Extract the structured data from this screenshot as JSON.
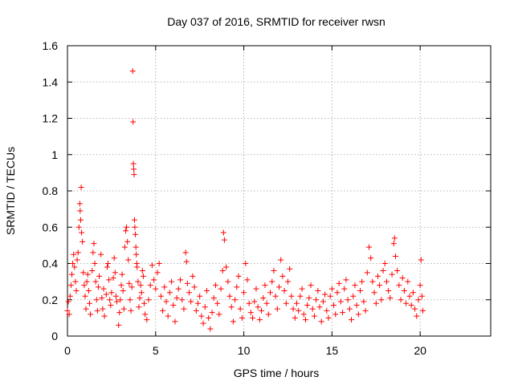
{
  "chart_data": {
    "type": "scatter",
    "title": "Day 037 of 2016, SRMTID for receiver rwsn",
    "xlabel": "GPS time / hours",
    "ylabel": "SRMTID / TECUs",
    "xlim": [
      0,
      24
    ],
    "ylim": [
      0,
      1.6
    ],
    "xticks": [
      0,
      5,
      10,
      15,
      20
    ],
    "yticks": [
      0,
      0.2,
      0.4,
      0.6,
      0.8,
      1,
      1.2,
      1.4,
      1.6
    ],
    "xtick_labels": [
      "0",
      "5",
      "10",
      "15",
      "20"
    ],
    "ytick_labels": [
      "0",
      "0.2",
      "0.4",
      "0.6",
      "0.8",
      "1",
      "1.2",
      "1.4",
      "1.6"
    ],
    "grid": true,
    "marker": "plus",
    "color": "#ff0000",
    "series": [
      {
        "name": "rwsn",
        "points": [
          [
            0.0,
            0.14
          ],
          [
            0.05,
            0.19
          ],
          [
            0.1,
            0.12
          ],
          [
            0.15,
            0.22
          ],
          [
            0.2,
            0.28
          ],
          [
            0.25,
            0.34
          ],
          [
            0.3,
            0.4
          ],
          [
            0.35,
            0.45
          ],
          [
            0.4,
            0.38
          ],
          [
            0.45,
            0.3
          ],
          [
            0.5,
            0.25
          ],
          [
            0.55,
            0.42
          ],
          [
            0.6,
            0.46
          ],
          [
            0.65,
            0.6
          ],
          [
            0.7,
            0.73
          ],
          [
            0.72,
            0.69
          ],
          [
            0.75,
            0.64
          ],
          [
            0.78,
            0.82
          ],
          [
            0.8,
            0.57
          ],
          [
            0.85,
            0.52
          ],
          [
            0.9,
            0.35
          ],
          [
            0.95,
            0.28
          ],
          [
            1.0,
            0.22
          ],
          [
            1.05,
            0.15
          ],
          [
            1.1,
            0.3
          ],
          [
            1.15,
            0.34
          ],
          [
            1.2,
            0.25
          ],
          [
            1.25,
            0.18
          ],
          [
            1.3,
            0.12
          ],
          [
            1.4,
            0.36
          ],
          [
            1.45,
            0.46
          ],
          [
            1.5,
            0.51
          ],
          [
            1.55,
            0.4
          ],
          [
            1.6,
            0.3
          ],
          [
            1.65,
            0.2
          ],
          [
            1.7,
            0.14
          ],
          [
            1.75,
            0.27
          ],
          [
            1.8,
            0.33
          ],
          [
            1.9,
            0.45
          ],
          [
            1.95,
            0.21
          ],
          [
            2.0,
            0.15
          ],
          [
            2.05,
            0.26
          ],
          [
            2.1,
            0.11
          ],
          [
            2.2,
            0.23
          ],
          [
            2.25,
            0.38
          ],
          [
            2.3,
            0.4
          ],
          [
            2.35,
            0.31
          ],
          [
            2.4,
            0.2
          ],
          [
            2.45,
            0.17
          ],
          [
            2.5,
            0.24
          ],
          [
            2.6,
            0.32
          ],
          [
            2.65,
            0.43
          ],
          [
            2.7,
            0.35
          ],
          [
            2.75,
            0.22
          ],
          [
            2.8,
            0.19
          ],
          [
            2.9,
            0.06
          ],
          [
            2.95,
            0.13
          ],
          [
            3.0,
            0.2
          ],
          [
            3.05,
            0.28
          ],
          [
            3.1,
            0.34
          ],
          [
            3.15,
            0.25
          ],
          [
            3.2,
            0.15
          ],
          [
            3.25,
            0.49
          ],
          [
            3.3,
            0.58
          ],
          [
            3.35,
            0.6
          ],
          [
            3.4,
            0.52
          ],
          [
            3.45,
            0.42
          ],
          [
            3.5,
            0.29
          ],
          [
            3.55,
            0.2
          ],
          [
            3.6,
            0.14
          ],
          [
            3.65,
            0.27
          ],
          [
            3.7,
            1.46
          ],
          [
            3.72,
            1.18
          ],
          [
            3.74,
            0.95
          ],
          [
            3.76,
            0.92
          ],
          [
            3.78,
            0.89
          ],
          [
            3.8,
            0.64
          ],
          [
            3.82,
            0.6
          ],
          [
            3.85,
            0.56
          ],
          [
            3.88,
            0.49
          ],
          [
            3.9,
            0.45
          ],
          [
            3.93,
            0.4
          ],
          [
            3.95,
            0.38
          ],
          [
            4.0,
            0.3
          ],
          [
            4.05,
            0.16
          ],
          [
            4.1,
            0.21
          ],
          [
            4.15,
            0.28
          ],
          [
            4.2,
            0.24
          ],
          [
            4.25,
            0.36
          ],
          [
            4.3,
            0.33
          ],
          [
            4.35,
            0.18
          ],
          [
            4.4,
            0.12
          ],
          [
            4.5,
            0.09
          ],
          [
            4.6,
            0.2
          ],
          [
            4.7,
            0.28
          ],
          [
            4.8,
            0.39
          ],
          [
            4.9,
            0.31
          ],
          [
            5.0,
            0.26
          ],
          [
            5.1,
            0.35
          ],
          [
            5.2,
            0.4
          ],
          [
            5.3,
            0.22
          ],
          [
            5.4,
            0.14
          ],
          [
            5.5,
            0.27
          ],
          [
            5.6,
            0.19
          ],
          [
            5.7,
            0.11
          ],
          [
            5.8,
            0.24
          ],
          [
            5.9,
            0.3
          ],
          [
            6.0,
            0.17
          ],
          [
            6.1,
            0.08
          ],
          [
            6.2,
            0.21
          ],
          [
            6.3,
            0.26
          ],
          [
            6.4,
            0.31
          ],
          [
            6.5,
            0.2
          ],
          [
            6.6,
            0.15
          ],
          [
            6.7,
            0.46
          ],
          [
            6.75,
            0.41
          ],
          [
            6.8,
            0.29
          ],
          [
            6.9,
            0.24
          ],
          [
            7.0,
            0.19
          ],
          [
            7.1,
            0.33
          ],
          [
            7.2,
            0.27
          ],
          [
            7.3,
            0.14
          ],
          [
            7.4,
            0.18
          ],
          [
            7.5,
            0.22
          ],
          [
            7.6,
            0.11
          ],
          [
            7.7,
            0.07
          ],
          [
            7.8,
            0.16
          ],
          [
            7.9,
            0.25
          ],
          [
            8.0,
            0.1
          ],
          [
            8.1,
            0.04
          ],
          [
            8.2,
            0.13
          ],
          [
            8.3,
            0.21
          ],
          [
            8.4,
            0.28
          ],
          [
            8.5,
            0.18
          ],
          [
            8.6,
            0.12
          ],
          [
            8.7,
            0.26
          ],
          [
            8.8,
            0.36
          ],
          [
            8.85,
            0.57
          ],
          [
            8.9,
            0.53
          ],
          [
            9.0,
            0.38
          ],
          [
            9.1,
            0.3
          ],
          [
            9.2,
            0.22
          ],
          [
            9.3,
            0.16
          ],
          [
            9.4,
            0.08
          ],
          [
            9.5,
            0.2
          ],
          [
            9.6,
            0.27
          ],
          [
            9.7,
            0.33
          ],
          [
            9.8,
            0.15
          ],
          [
            9.9,
            0.1
          ],
          [
            10.0,
            0.24
          ],
          [
            10.1,
            0.4
          ],
          [
            10.2,
            0.31
          ],
          [
            10.3,
            0.18
          ],
          [
            10.4,
            0.13
          ],
          [
            10.5,
            0.1
          ],
          [
            10.6,
            0.19
          ],
          [
            10.7,
            0.26
          ],
          [
            10.8,
            0.16
          ],
          [
            10.9,
            0.09
          ],
          [
            11.0,
            0.14
          ],
          [
            11.1,
            0.21
          ],
          [
            11.2,
            0.28
          ],
          [
            11.3,
            0.18
          ],
          [
            11.4,
            0.12
          ],
          [
            11.5,
            0.24
          ],
          [
            11.6,
            0.3
          ],
          [
            11.7,
            0.36
          ],
          [
            11.8,
            0.22
          ],
          [
            11.9,
            0.15
          ],
          [
            12.0,
            0.27
          ],
          [
            12.1,
            0.42
          ],
          [
            12.2,
            0.33
          ],
          [
            12.3,
            0.25
          ],
          [
            12.4,
            0.18
          ],
          [
            12.5,
            0.3
          ],
          [
            12.6,
            0.37
          ],
          [
            12.7,
            0.22
          ],
          [
            12.8,
            0.15
          ],
          [
            12.9,
            0.1
          ],
          [
            13.0,
            0.18
          ],
          [
            13.1,
            0.14
          ],
          [
            13.2,
            0.22
          ],
          [
            13.3,
            0.26
          ],
          [
            13.4,
            0.12
          ],
          [
            13.5,
            0.09
          ],
          [
            13.6,
            0.17
          ],
          [
            13.7,
            0.21
          ],
          [
            13.8,
            0.28
          ],
          [
            13.9,
            0.15
          ],
          [
            14.0,
            0.11
          ],
          [
            14.1,
            0.2
          ],
          [
            14.2,
            0.25
          ],
          [
            14.3,
            0.16
          ],
          [
            14.4,
            0.08
          ],
          [
            14.5,
            0.19
          ],
          [
            14.6,
            0.23
          ],
          [
            14.7,
            0.14
          ],
          [
            14.8,
            0.1
          ],
          [
            14.9,
            0.22
          ],
          [
            15.0,
            0.26
          ],
          [
            15.1,
            0.17
          ],
          [
            15.2,
            0.12
          ],
          [
            15.3,
            0.24
          ],
          [
            15.4,
            0.29
          ],
          [
            15.5,
            0.19
          ],
          [
            15.6,
            0.13
          ],
          [
            15.7,
            0.26
          ],
          [
            15.8,
            0.31
          ],
          [
            15.9,
            0.2
          ],
          [
            16.0,
            0.15
          ],
          [
            16.1,
            0.09
          ],
          [
            16.2,
            0.22
          ],
          [
            16.3,
            0.28
          ],
          [
            16.4,
            0.17
          ],
          [
            16.5,
            0.12
          ],
          [
            16.6,
            0.25
          ],
          [
            16.7,
            0.3
          ],
          [
            16.8,
            0.19
          ],
          [
            16.9,
            0.14
          ],
          [
            17.0,
            0.35
          ],
          [
            17.1,
            0.49
          ],
          [
            17.2,
            0.43
          ],
          [
            17.3,
            0.3
          ],
          [
            17.4,
            0.24
          ],
          [
            17.5,
            0.18
          ],
          [
            17.6,
            0.33
          ],
          [
            17.7,
            0.28
          ],
          [
            17.8,
            0.2
          ],
          [
            17.9,
            0.36
          ],
          [
            18.0,
            0.4
          ],
          [
            18.1,
            0.3
          ],
          [
            18.2,
            0.25
          ],
          [
            18.3,
            0.21
          ],
          [
            18.4,
            0.34
          ],
          [
            18.5,
            0.51
          ],
          [
            18.55,
            0.54
          ],
          [
            18.6,
            0.44
          ],
          [
            18.7,
            0.36
          ],
          [
            18.8,
            0.28
          ],
          [
            18.9,
            0.2
          ],
          [
            19.0,
            0.32
          ],
          [
            19.1,
            0.25
          ],
          [
            19.2,
            0.18
          ],
          [
            19.3,
            0.3
          ],
          [
            19.4,
            0.22
          ],
          [
            19.5,
            0.17
          ],
          [
            19.6,
            0.24
          ],
          [
            19.7,
            0.15
          ],
          [
            19.8,
            0.11
          ],
          [
            19.9,
            0.2
          ],
          [
            20.0,
            0.28
          ],
          [
            20.05,
            0.42
          ],
          [
            20.1,
            0.22
          ],
          [
            20.15,
            0.14
          ]
        ]
      }
    ]
  }
}
